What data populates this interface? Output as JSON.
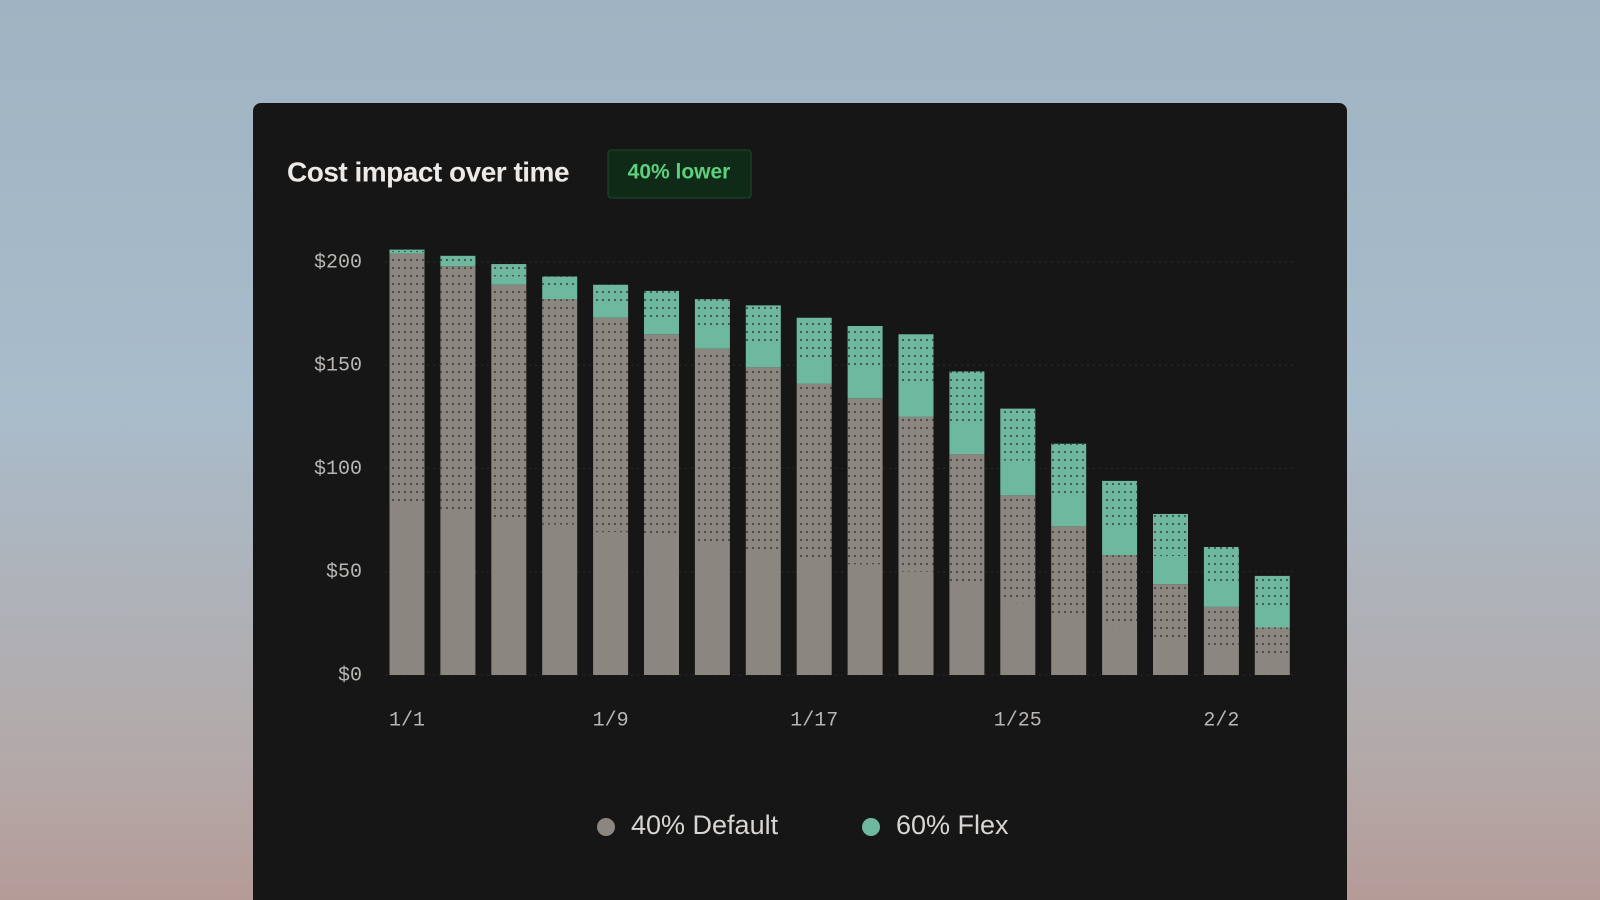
{
  "chart_data": {
    "type": "stacked_bar",
    "title": "Cost impact over time",
    "badge": "40% lower",
    "categories": [
      "1/1",
      null,
      null,
      null,
      "1/9",
      null,
      null,
      null,
      "1/17",
      null,
      null,
      null,
      "1/25",
      null,
      null,
      null,
      "2/2",
      null
    ],
    "series": [
      {
        "name": "40% Default",
        "color": "#8c8681",
        "values": [
          204,
          198,
          189,
          182,
          173,
          165,
          158,
          149,
          141,
          134,
          125,
          107,
          87,
          72,
          58,
          44,
          33,
          23
        ]
      },
      {
        "name": "60% Flex",
        "color": "#6fb8a0",
        "values": [
          2,
          5,
          10,
          11,
          16,
          21,
          24,
          30,
          32,
          35,
          40,
          40,
          42,
          40,
          36,
          34,
          29,
          25
        ]
      }
    ],
    "ylim": [
      0,
      200
    ],
    "yticks": [
      {
        "value": 0,
        "label": "$0"
      },
      {
        "value": 50,
        "label": "$50"
      },
      {
        "value": 100,
        "label": "$100"
      },
      {
        "value": 150,
        "label": "$150"
      },
      {
        "value": 200,
        "label": "$200"
      }
    ],
    "grid": true
  }
}
